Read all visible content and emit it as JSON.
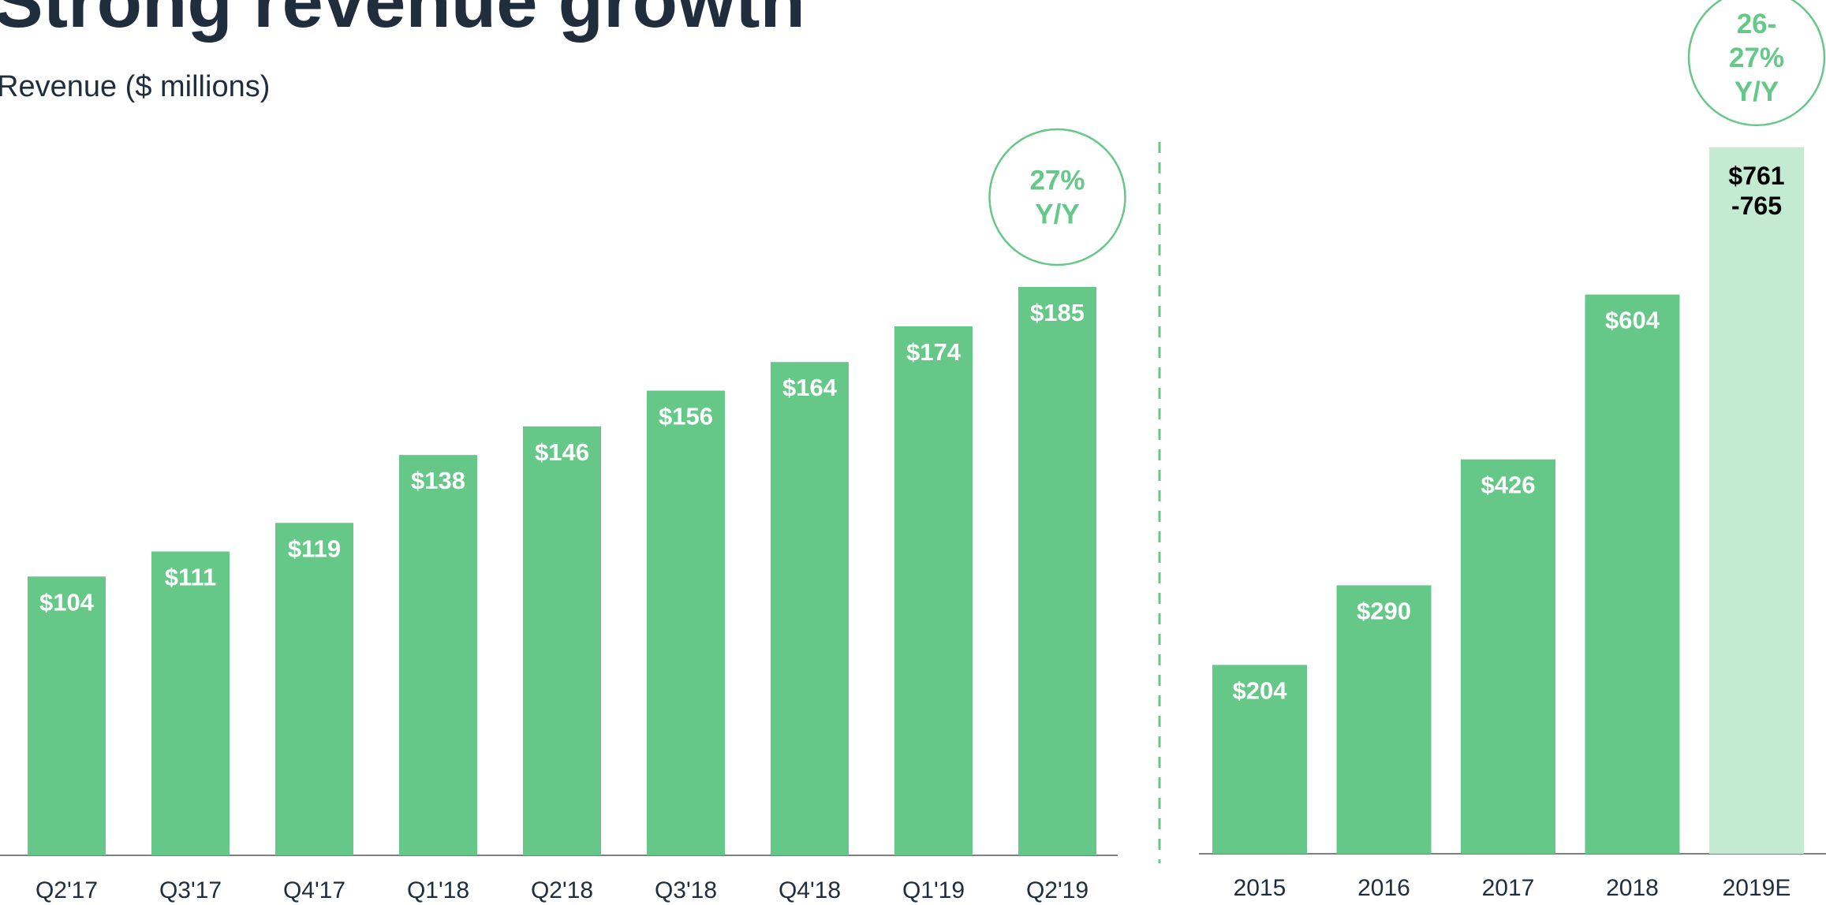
{
  "title": "Strong revenue growth",
  "subtitle": "Revenue ($ millions)",
  "chart_data": [
    {
      "type": "bar",
      "categories": [
        "Q2'17",
        "Q3'17",
        "Q4'17",
        "Q1'18",
        "Q2'18",
        "Q3'18",
        "Q4'18",
        "Q1'19",
        "Q2'19"
      ],
      "values": [
        104,
        111,
        119,
        138,
        146,
        156,
        164,
        174,
        185
      ],
      "value_labels": [
        "$104",
        "$111",
        "$119",
        "$138",
        "$146",
        "$156",
        "$164",
        "$174",
        "$185"
      ],
      "color": "#66c888",
      "ylim": [
        26,
        200
      ],
      "annotation": "27%\nY/Y"
    },
    {
      "type": "bar",
      "categories": [
        "2015",
        "2016",
        "2017",
        "2018",
        "2019E"
      ],
      "values": [
        204,
        290,
        426,
        604,
        763
      ],
      "value_labels": [
        "$204",
        "$290",
        "$426",
        "$604",
        "$761\n-765"
      ],
      "colors": [
        "#66c888",
        "#66c888",
        "#66c888",
        "#66c888",
        "#c3ebd1"
      ],
      "ylim": [
        0,
        900
      ],
      "annotation": "26-\n27%\nY/Y"
    }
  ]
}
